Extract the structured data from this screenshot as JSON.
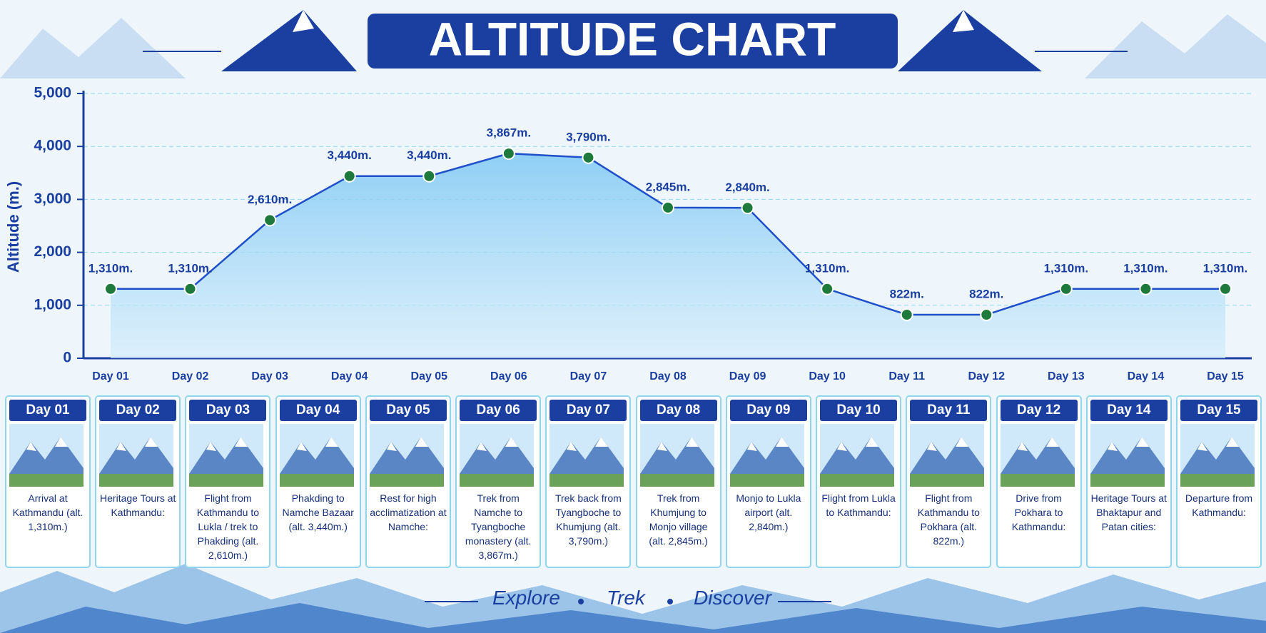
{
  "chart_data": {
    "type": "line",
    "title": "ALTITUDE CHART",
    "y_label": "Altitude (m.)",
    "categories": [
      "Day 01",
      "Day 02",
      "Day 03",
      "Day 04",
      "Day 05",
      "Day 06",
      "Day 07",
      "Day 08",
      "Day 09",
      "Day 10",
      "Day 11",
      "Day 12",
      "Day 13",
      "Day 14",
      "Day 15"
    ],
    "values": [
      1310,
      1310,
      2610,
      3440,
      3440,
      3867,
      3790,
      2845,
      2840,
      1310,
      822,
      822,
      1310,
      1310,
      1310
    ],
    "value_labels": [
      "1,310m.",
      "1,310m.",
      "2,610m.",
      "3,440m.",
      "3,440m.",
      "3,867m.",
      "3,790m.",
      "2,845m.",
      "2,840m.",
      "1,310m.",
      "822m.",
      "822m.",
      "1,310m.",
      "1,310m.",
      "1,310m."
    ],
    "color": "#1f4fc9",
    "marker_color": "#1e7a3c",
    "ylim": [
      0,
      5000
    ],
    "yticks": [
      0,
      {
        "value": 1000,
        "label": "1,000"
      },
      {
        "value": 2000,
        "label": "2,000"
      },
      {
        "value": 3000,
        "label": "3,000"
      },
      {
        "value": 4000,
        "label": "4,000"
      },
      {
        "value": 5000,
        "label": "5,000"
      }
    ],
    "grid": true
  },
  "itinerary": [
    {
      "day": "Day 01",
      "text": "Arrival at Kathmandu (alt. 1,310m.)"
    },
    {
      "day": "Day 02",
      "text": "Heritage Tours at Kathmandu:"
    },
    {
      "day": "Day 03",
      "text": "Flight from Kathmandu to Lukla / trek to Phakding (alt. 2,610m.)"
    },
    {
      "day": "Day 04",
      "text": "Phakding to Namche Bazaar (alt. 3,440m.)"
    },
    {
      "day": "Day 05",
      "text": "Rest for high acclimatization at Namche:"
    },
    {
      "day": "Day 06",
      "text": "Trek from Namche to Tyangboche monastery (alt. 3,867m.)"
    },
    {
      "day": "Day 07",
      "text": "Trek back from Tyangboche to Khumjung (alt. 3,790m.)"
    },
    {
      "day": "Day 08",
      "text": "Trek from Khumjung to Monjo village (alt. 2,845m.)"
    },
    {
      "day": "Day 09",
      "text": "Monjo to Lukla airport (alt. 2,840m.)"
    },
    {
      "day": "Day 10",
      "text": "Flight from Lukla to Kathmandu:"
    },
    {
      "day": "Day 11",
      "text": "Flight from Kathmandu to Pokhara (alt. 822m.)"
    },
    {
      "day": "Day 12",
      "text": "Drive from Pokhara to Kathmandu:"
    },
    {
      "day": "Day 14",
      "text": "Heritage Tours at Bhaktapur and Patan cities:"
    },
    {
      "day": "Day 15",
      "text": "Departure from Kathmandu:"
    }
  ],
  "footer": [
    "Explore",
    "Trek",
    "Discover"
  ]
}
